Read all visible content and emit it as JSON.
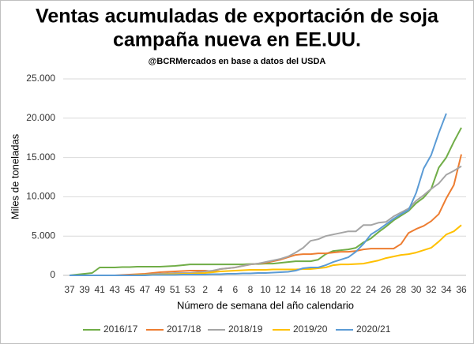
{
  "chart_data": {
    "type": "line",
    "title": [
      "Ventas acumuladas de exportación de soja",
      "campaña nueva en EE.UU."
    ],
    "subtitle": "@BCRMercados  en base a datos del USDA",
    "y_label": "Miles de toneladas",
    "x_label": "Número de semana del año calendario",
    "categories": [
      "37",
      null,
      "39",
      null,
      "41",
      null,
      "43",
      null,
      "45",
      null,
      "47",
      null,
      "49",
      null,
      "51",
      null,
      "53",
      null,
      "2",
      null,
      "4",
      null,
      "6",
      null,
      "8",
      null,
      "10",
      null,
      "12",
      null,
      "14",
      null,
      "16",
      null,
      "18",
      null,
      "20",
      null,
      "22",
      null,
      "24",
      null,
      "26",
      null,
      "28",
      null,
      "30",
      null,
      "32",
      null,
      "34",
      null,
      "36"
    ],
    "ylim": [
      0,
      25000
    ],
    "yticks": [
      0,
      {
        "value": 5000,
        "label": "5.000"
      },
      {
        "value": 10000,
        "label": "10.000"
      },
      {
        "value": 15000,
        "label": "15.000"
      },
      {
        "value": 20000,
        "label": "20.000"
      },
      {
        "value": 25000,
        "label": "25.000"
      }
    ],
    "grid": true,
    "legend": "bottom",
    "series": [
      {
        "name": "2016/17",
        "color": "#70ad47",
        "values": [
          0,
          100,
          200,
          300,
          1000,
          1000,
          1000,
          1050,
          1050,
          1100,
          1100,
          1100,
          1100,
          1150,
          1200,
          1300,
          1400,
          1400,
          1400,
          1400,
          1400,
          1400,
          1400,
          1400,
          1450,
          1450,
          1500,
          1500,
          1600,
          1700,
          1800,
          1800,
          1800,
          2000,
          2700,
          3100,
          3200,
          3300,
          3500,
          4200,
          4700,
          5500,
          6200,
          7000,
          7600,
          8200,
          9200,
          9900,
          11000,
          13700,
          15000,
          17000,
          18800
        ]
      },
      {
        "name": "2017/18",
        "color": "#ed7d31",
        "values": [
          0,
          0,
          0,
          0,
          0,
          0,
          0,
          50,
          100,
          150,
          200,
          300,
          400,
          450,
          500,
          550,
          600,
          600,
          600,
          500,
          800,
          900,
          1000,
          1200,
          1400,
          1500,
          1600,
          1800,
          2000,
          2300,
          2600,
          2700,
          2700,
          2800,
          2800,
          2900,
          3000,
          3000,
          3100,
          3300,
          3400,
          3400,
          3400,
          3400,
          4000,
          5400,
          5900,
          6300,
          6900,
          7800,
          9800,
          11500,
          15400
        ]
      },
      {
        "name": "2018/19",
        "color": "#a5a5a5",
        "values": [
          0,
          0,
          0,
          0,
          0,
          0,
          0,
          0,
          0,
          50,
          100,
          150,
          200,
          250,
          300,
          300,
          300,
          400,
          500,
          600,
          800,
          900,
          1000,
          1200,
          1400,
          1500,
          1700,
          1900,
          2100,
          2400,
          2900,
          3500,
          4400,
          4600,
          5000,
          5200,
          5400,
          5600,
          5600,
          6400,
          6400,
          6700,
          6800,
          7500,
          8000,
          8500,
          9500,
          10200,
          11000,
          11700,
          12800,
          13300,
          13900
        ]
      },
      {
        "name": "2019/20",
        "color": "#ffc000",
        "values": [
          0,
          0,
          0,
          0,
          0,
          0,
          0,
          0,
          0,
          50,
          50,
          100,
          100,
          150,
          150,
          200,
          200,
          250,
          300,
          400,
          500,
          550,
          600,
          650,
          700,
          700,
          700,
          750,
          750,
          750,
          750,
          800,
          800,
          900,
          1000,
          1300,
          1400,
          1400,
          1450,
          1500,
          1700,
          1900,
          2200,
          2400,
          2600,
          2700,
          2900,
          3200,
          3500,
          4300,
          5200,
          5600,
          6400
        ]
      },
      {
        "name": "2020/21",
        "color": "#5b9bd5",
        "values": [
          0,
          0,
          0,
          0,
          0,
          0,
          0,
          0,
          0,
          0,
          0,
          50,
          50,
          50,
          50,
          100,
          100,
          100,
          100,
          150,
          150,
          200,
          200,
          250,
          250,
          300,
          300,
          350,
          400,
          450,
          600,
          900,
          1000,
          1000,
          1300,
          1700,
          2000,
          2300,
          3000,
          4000,
          5200,
          5800,
          6500,
          7200,
          7800,
          8300,
          10500,
          13600,
          15300,
          18100,
          20600,
          null,
          null
        ]
      }
    ]
  }
}
